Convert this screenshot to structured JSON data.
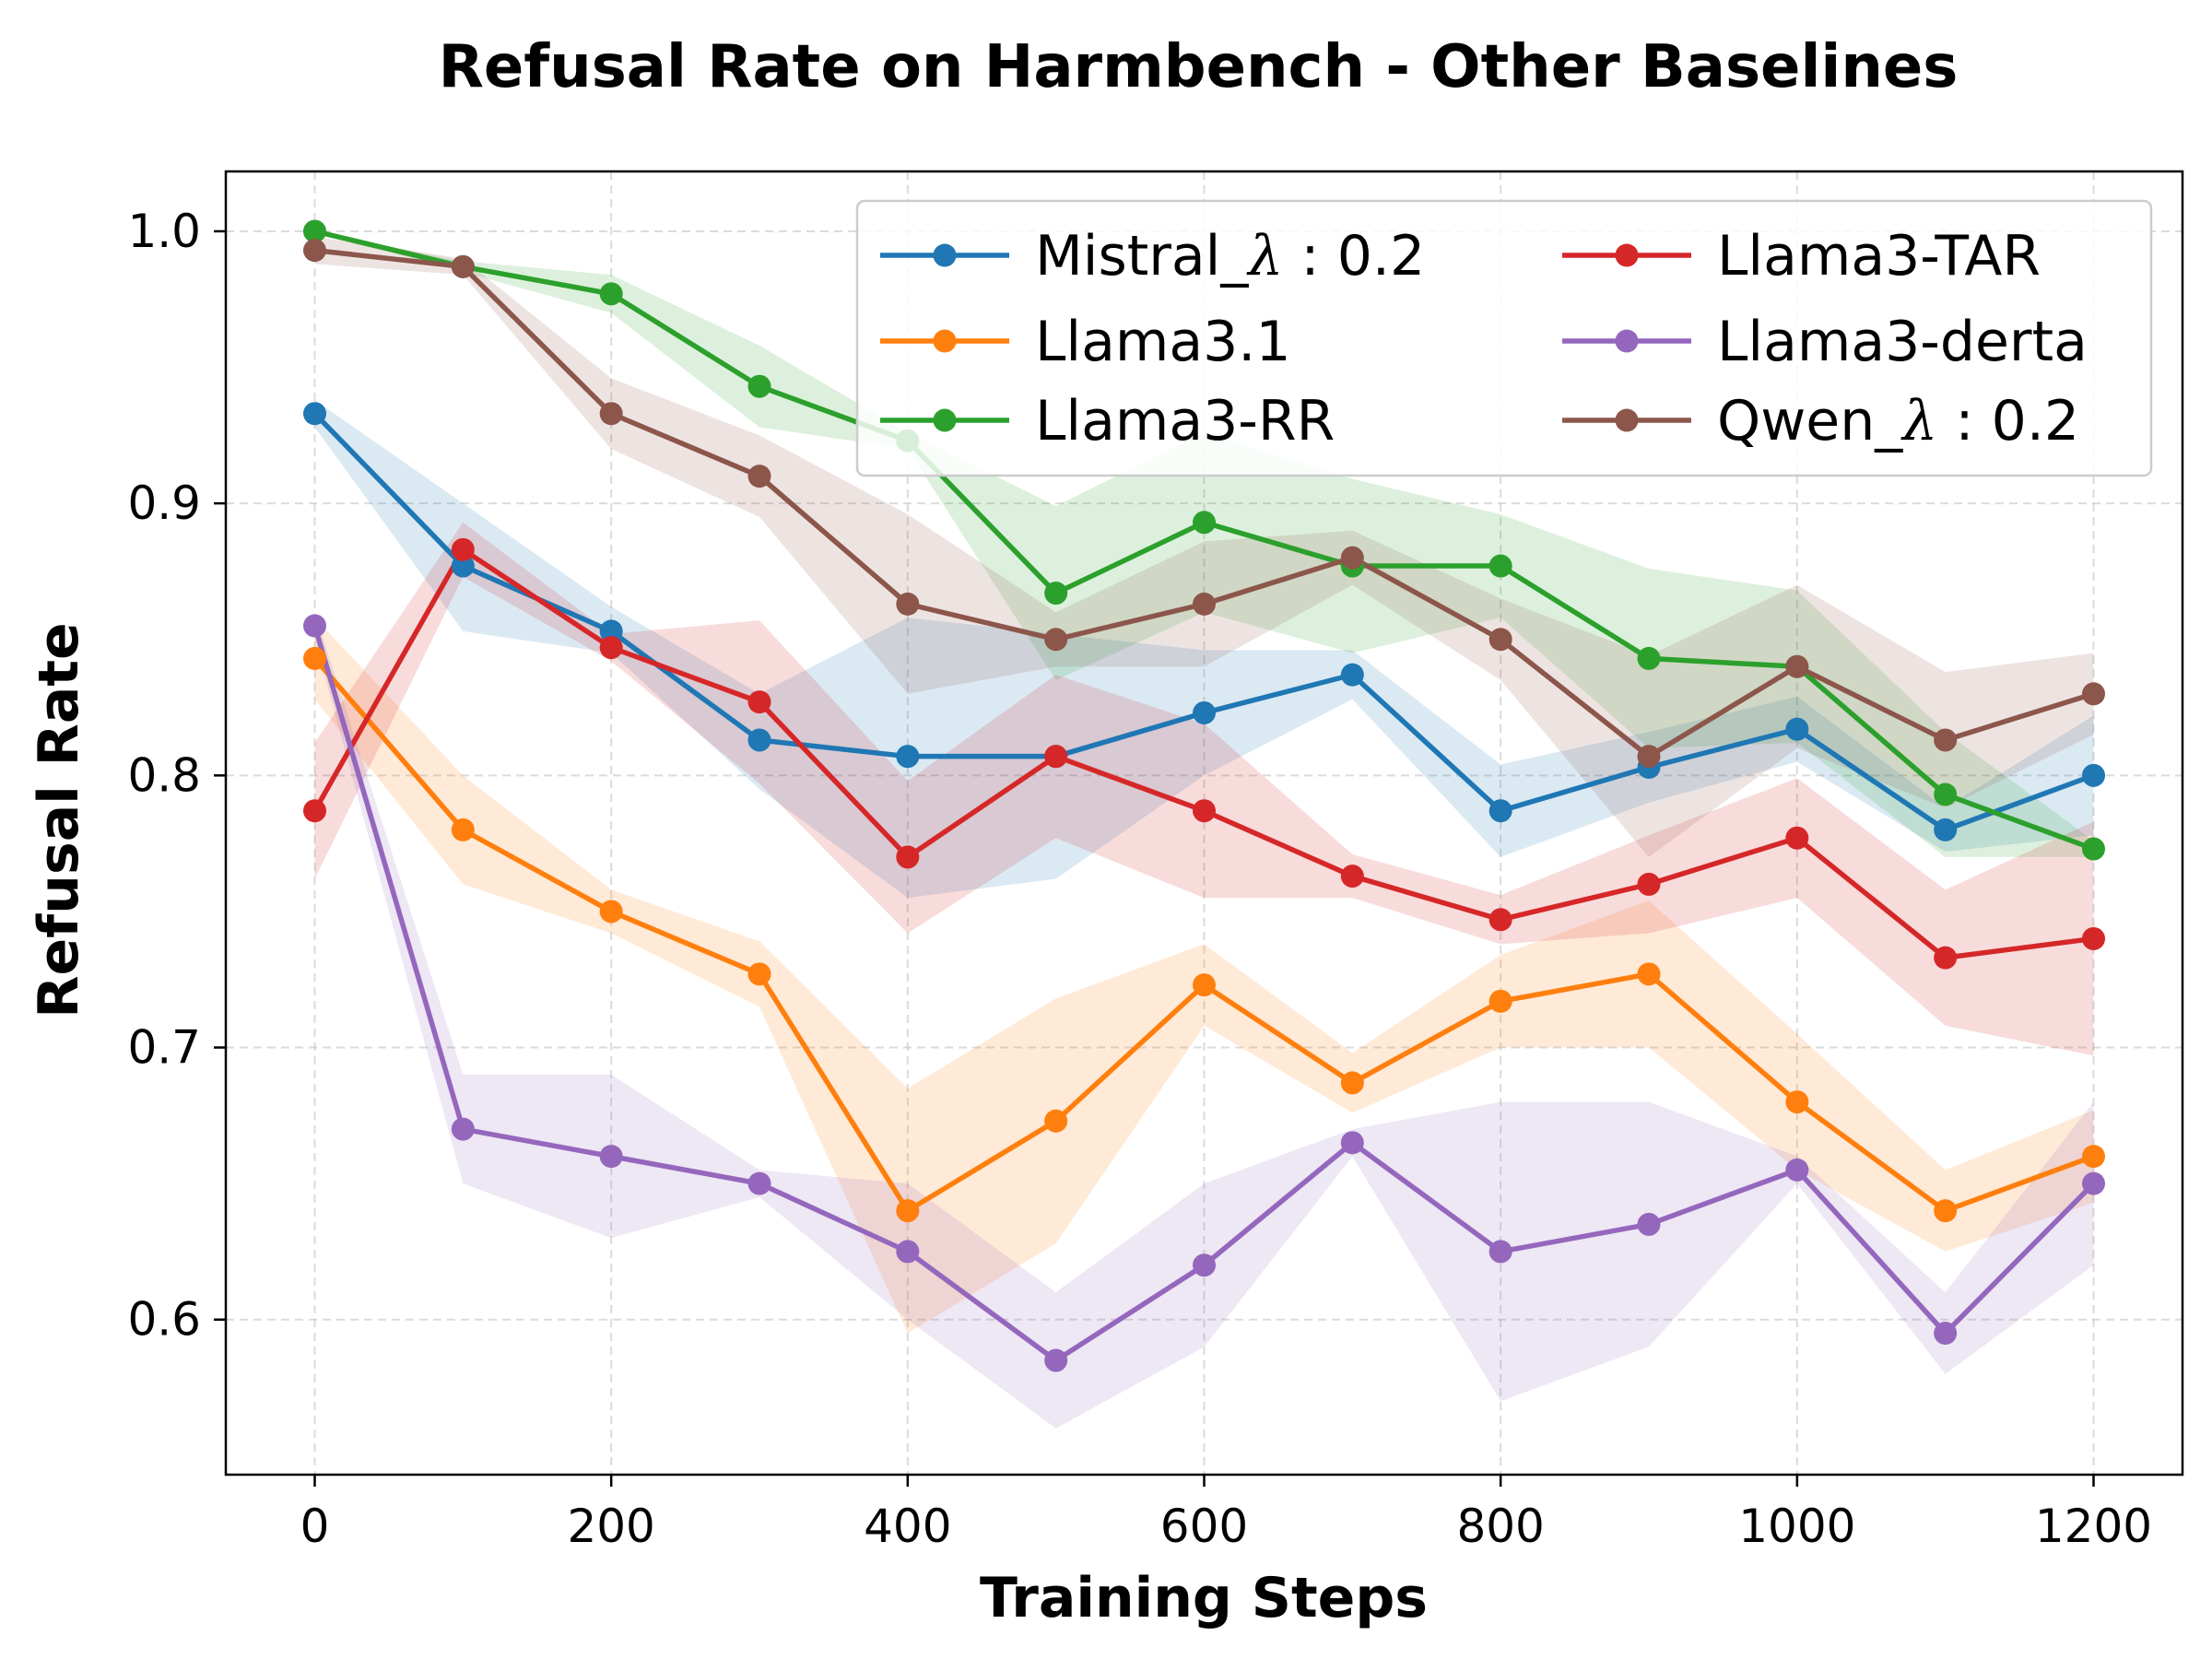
{
  "chart_data": {
    "type": "line",
    "title": "Refusal Rate on Harmbench - Other Baselines",
    "xlabel": "Training Steps",
    "ylabel": "Refusal Rate",
    "xlim": [
      -60,
      1260
    ],
    "ylim": [
      0.543,
      1.022
    ],
    "xticks": [
      0,
      200,
      400,
      600,
      800,
      1000,
      1200
    ],
    "xtick_labels": [
      "0",
      "200",
      "400",
      "600",
      "800",
      "1000",
      "1200"
    ],
    "yticks": [
      0.6,
      0.7,
      0.8,
      0.9,
      1.0
    ],
    "ytick_labels": [
      "0.6",
      "0.7",
      "0.8",
      "0.9",
      "1.0"
    ],
    "grid": true,
    "legend_position": "top-right",
    "x": [
      0,
      100,
      200,
      300,
      400,
      500,
      600,
      700,
      800,
      900,
      1000,
      1100,
      1200
    ],
    "series": [
      {
        "name": "Mistral_",
        "lambda_suffix": "0.2",
        "color": "#1f77b4",
        "values": [
          0.933,
          0.877,
          0.853,
          0.813,
          0.807,
          0.807,
          0.823,
          0.837,
          0.787,
          0.803,
          0.817,
          0.78,
          0.8
        ],
        "lower": [
          0.928,
          0.853,
          0.845,
          0.795,
          0.755,
          0.762,
          0.8,
          0.828,
          0.77,
          0.79,
          0.805,
          0.772,
          0.778
        ],
        "upper": [
          0.938,
          0.9,
          0.862,
          0.83,
          0.858,
          0.852,
          0.846,
          0.846,
          0.804,
          0.816,
          0.829,
          0.788,
          0.822
        ]
      },
      {
        "name": "Llama3.1",
        "color": "#ff7f0e",
        "values": [
          0.843,
          0.78,
          0.75,
          0.727,
          0.64,
          0.673,
          0.723,
          0.687,
          0.717,
          0.727,
          0.68,
          0.64,
          0.66
        ],
        "lower": [
          0.828,
          0.76,
          0.742,
          0.715,
          0.595,
          0.628,
          0.708,
          0.676,
          0.7,
          0.7,
          0.655,
          0.625,
          0.643
        ],
        "upper": [
          0.858,
          0.8,
          0.758,
          0.739,
          0.685,
          0.718,
          0.738,
          0.698,
          0.734,
          0.754,
          0.705,
          0.655,
          0.677
        ]
      },
      {
        "name": "Llama3-RR",
        "color": "#2ca02c",
        "values": [
          1.0,
          0.987,
          0.977,
          0.943,
          0.923,
          0.867,
          0.893,
          0.877,
          0.877,
          0.843,
          0.84,
          0.793,
          0.773
        ],
        "lower": [
          1.0,
          0.985,
          0.97,
          0.928,
          0.92,
          0.835,
          0.86,
          0.845,
          0.858,
          0.81,
          0.812,
          0.77,
          0.77
        ],
        "upper": [
          1.0,
          0.989,
          0.984,
          0.958,
          0.926,
          0.899,
          0.926,
          0.909,
          0.896,
          0.876,
          0.868,
          0.816,
          0.776
        ]
      },
      {
        "name": "Llama3-TAR",
        "color": "#d62728",
        "values": [
          0.787,
          0.883,
          0.847,
          0.827,
          0.77,
          0.807,
          0.787,
          0.763,
          0.747,
          0.76,
          0.777,
          0.733,
          0.74
        ],
        "lower": [
          0.762,
          0.873,
          0.842,
          0.797,
          0.742,
          0.777,
          0.755,
          0.755,
          0.738,
          0.742,
          0.755,
          0.708,
          0.697
        ],
        "upper": [
          0.812,
          0.893,
          0.852,
          0.857,
          0.798,
          0.837,
          0.819,
          0.771,
          0.756,
          0.778,
          0.799,
          0.758,
          0.783
        ]
      },
      {
        "name": "Llama3-derta",
        "color": "#9467bd",
        "values": [
          0.855,
          0.67,
          0.66,
          0.65,
          0.625,
          0.585,
          0.62,
          0.665,
          0.625,
          0.635,
          0.655,
          0.595,
          0.65
        ],
        "lower": [
          0.85,
          0.65,
          0.63,
          0.645,
          0.6,
          0.56,
          0.59,
          0.66,
          0.57,
          0.59,
          0.65,
          0.58,
          0.62
        ],
        "upper": [
          0.86,
          0.69,
          0.69,
          0.655,
          0.65,
          0.61,
          0.65,
          0.67,
          0.68,
          0.68,
          0.66,
          0.61,
          0.68
        ]
      },
      {
        "name": "Qwen_",
        "lambda_suffix": "0.2",
        "color": "#8c564b",
        "values": [
          0.993,
          0.987,
          0.933,
          0.91,
          0.863,
          0.85,
          0.863,
          0.88,
          0.85,
          0.807,
          0.84,
          0.813,
          0.83
        ],
        "lower": [
          0.988,
          0.984,
          0.92,
          0.895,
          0.83,
          0.84,
          0.84,
          0.87,
          0.835,
          0.77,
          0.81,
          0.788,
          0.815
        ],
        "upper": [
          0.998,
          0.99,
          0.946,
          0.925,
          0.896,
          0.86,
          0.886,
          0.89,
          0.865,
          0.844,
          0.87,
          0.838,
          0.845
        ]
      }
    ]
  }
}
